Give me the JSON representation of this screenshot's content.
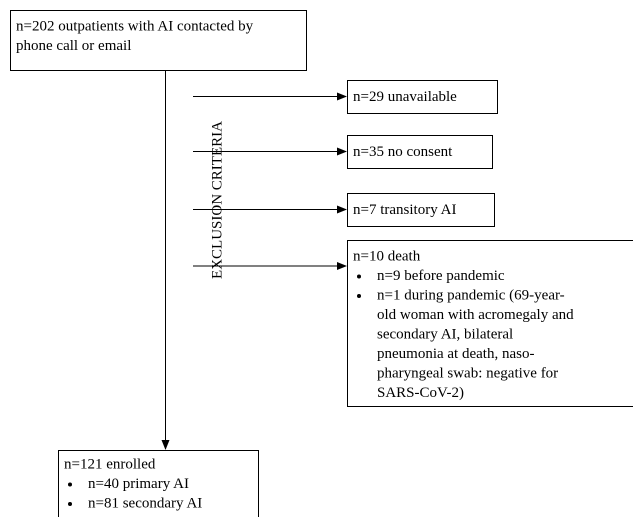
{
  "start": {
    "lines": [
      "n=202 outpatients with AI contacted by",
      "phone call or email"
    ]
  },
  "exclusion_label": "EXCLUSION CRITERIA",
  "exclusions": [
    {
      "title": "n=29 unavailable"
    },
    {
      "title": "n=35 no consent"
    },
    {
      "title": "n=7 transitory AI"
    },
    {
      "title": "n=10 death",
      "bullets": [
        {
          "lines": [
            "n=9 before pandemic"
          ]
        },
        {
          "lines": [
            "n=1 during pandemic (69-year-",
            "old woman with acromegaly and",
            "secondary AI, bilateral",
            "pneumonia at death, naso-",
            "pharyngeal swab: negative for",
            "SARS-CoV-2)"
          ]
        }
      ]
    }
  ],
  "enrolled": {
    "title": "n=121 enrolled",
    "bullets": [
      {
        "lines": [
          "n=40 primary AI"
        ]
      },
      {
        "lines": [
          "n=81 secondary AI"
        ]
      }
    ]
  }
}
